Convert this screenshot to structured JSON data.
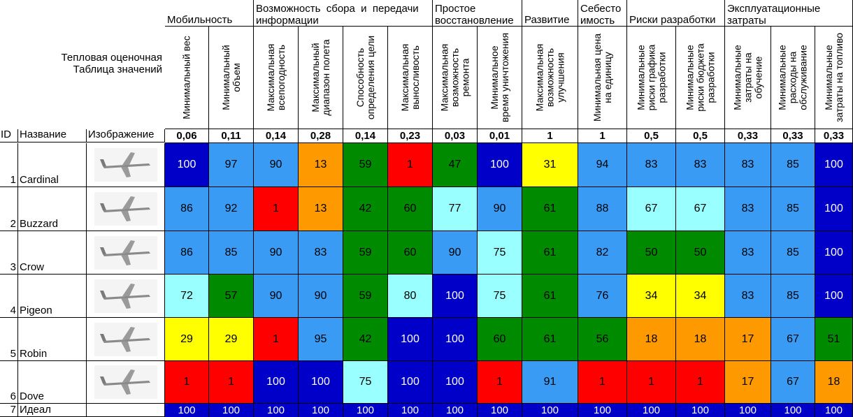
{
  "title_lines": [
    "Тепловая оценочная",
    "Таблица значений"
  ],
  "groups": [
    {
      "label": "Мобильность"
    },
    {
      "label": "Возможность  сбора  и  передачи информации"
    },
    {
      "label": "Простое восстановление"
    },
    {
      "label": "Развитие"
    },
    {
      "label": "Себесто имость"
    },
    {
      "label": "Риски разработки"
    },
    {
      "label": "Эксплуатационные затраты"
    }
  ],
  "criteria": [
    {
      "label": "Минимальный вес",
      "weight": "0,06"
    },
    {
      "label": "Минимальный\nобъем",
      "weight": "0,11"
    },
    {
      "label": "Максимальная\nвсепогодность",
      "weight": "0,14"
    },
    {
      "label": "Максимальный\nдиапазон полета",
      "weight": "0,28"
    },
    {
      "label": "Способность\nопределения цели",
      "weight": "0,14"
    },
    {
      "label": "Максимальная\nвыносливость",
      "weight": "0,23"
    },
    {
      "label": "Максимальная\nвозможность\nремонта",
      "weight": "0,03"
    },
    {
      "label": "Минимальное\nвремя уничтожения",
      "weight": "0,01"
    },
    {
      "label": "Максимальная\nвозможность\nулучшения",
      "weight": "1"
    },
    {
      "label": "Минимальная цена\nна единицу",
      "weight": "1"
    },
    {
      "label": "Минимальные\nриски графика\nразработки",
      "weight": "0,5"
    },
    {
      "label": "Минимальные\nриски бюджета\nразработки",
      "weight": "0,5"
    },
    {
      "label": "Минимальные\nзатраты на\nобучение",
      "weight": "0,33"
    },
    {
      "label": "Минимальные\nрасходы на\nобслуживание",
      "weight": "0,33"
    },
    {
      "label": "Минимальные\nзатраты на топливо",
      "weight": "0,33"
    }
  ],
  "col_headers": {
    "id": "ID",
    "name": "Название",
    "image": "Изображение"
  },
  "colors": {
    "navy": "#0000C8",
    "blue": "#3A9BF5",
    "cyan": "#99FFFF",
    "green": "#008A00",
    "yellow": "#FFFF00",
    "orange": "#FF9900",
    "red": "#FF0000"
  },
  "rows": [
    {
      "id": "1",
      "name": "Cardinal",
      "image_icon": "drone-thumbnail-icon",
      "values": [
        "100",
        "97",
        "90",
        "13",
        "59",
        "1",
        "47",
        "100",
        "31",
        "94",
        "83",
        "83",
        "83",
        "85",
        "100"
      ],
      "colors": [
        "navy",
        "blue",
        "blue",
        "orange",
        "green",
        "red",
        "green",
        "navy",
        "yellow",
        "blue",
        "blue",
        "blue",
        "blue",
        "blue",
        "navy"
      ]
    },
    {
      "id": "2",
      "name": "Buzzard",
      "image_icon": "drone-thumbnail-icon",
      "values": [
        "86",
        "92",
        "1",
        "13",
        "42",
        "60",
        "77",
        "90",
        "61",
        "88",
        "67",
        "67",
        "83",
        "85",
        "100"
      ],
      "colors": [
        "blue",
        "blue",
        "red",
        "orange",
        "green",
        "green",
        "cyan",
        "blue",
        "green",
        "blue",
        "cyan",
        "cyan",
        "blue",
        "blue",
        "navy"
      ]
    },
    {
      "id": "3",
      "name": "Crow",
      "image_icon": "drone-thumbnail-icon",
      "values": [
        "86",
        "85",
        "90",
        "83",
        "59",
        "60",
        "90",
        "75",
        "61",
        "82",
        "50",
        "50",
        "83",
        "85",
        "100"
      ],
      "colors": [
        "blue",
        "blue",
        "blue",
        "blue",
        "green",
        "green",
        "blue",
        "cyan",
        "green",
        "blue",
        "green",
        "green",
        "blue",
        "blue",
        "navy"
      ]
    },
    {
      "id": "4",
      "name": "Pigeon",
      "image_icon": "drone-thumbnail-icon",
      "values": [
        "72",
        "57",
        "90",
        "90",
        "59",
        "80",
        "100",
        "75",
        "61",
        "76",
        "34",
        "34",
        "83",
        "85",
        "100"
      ],
      "colors": [
        "cyan",
        "green",
        "blue",
        "blue",
        "green",
        "cyan",
        "navy",
        "cyan",
        "green",
        "blue",
        "yellow",
        "yellow",
        "blue",
        "blue",
        "navy"
      ]
    },
    {
      "id": "5",
      "name": "Robin",
      "image_icon": "drone-thumbnail-icon",
      "values": [
        "29",
        "29",
        "1",
        "95",
        "42",
        "100",
        "100",
        "60",
        "61",
        "56",
        "18",
        "18",
        "17",
        "67",
        "51"
      ],
      "colors": [
        "yellow",
        "yellow",
        "red",
        "blue",
        "green",
        "navy",
        "navy",
        "green",
        "green",
        "green",
        "orange",
        "orange",
        "orange",
        "blue",
        "green"
      ]
    },
    {
      "id": "6",
      "name": "Dove",
      "image_icon": "drone-thumbnail-icon",
      "values": [
        "1",
        "1",
        "100",
        "100",
        "75",
        "100",
        "100",
        "1",
        "91",
        "1",
        "1",
        "1",
        "17",
        "67",
        "18"
      ],
      "colors": [
        "red",
        "red",
        "navy",
        "navy",
        "cyan",
        "navy",
        "navy",
        "red",
        "blue",
        "red",
        "red",
        "red",
        "orange",
        "blue",
        "orange"
      ]
    },
    {
      "id": "7",
      "name": "Идеал",
      "image_icon": "",
      "values": [
        "100",
        "100",
        "100",
        "100",
        "100",
        "100",
        "100",
        "100",
        "100",
        "100",
        "100",
        "100",
        "100",
        "100",
        "100"
      ],
      "colors": [
        "navy",
        "navy",
        "navy",
        "navy",
        "navy",
        "navy",
        "navy",
        "navy",
        "navy",
        "navy",
        "navy",
        "navy",
        "navy",
        "navy",
        "navy"
      ]
    }
  ]
}
